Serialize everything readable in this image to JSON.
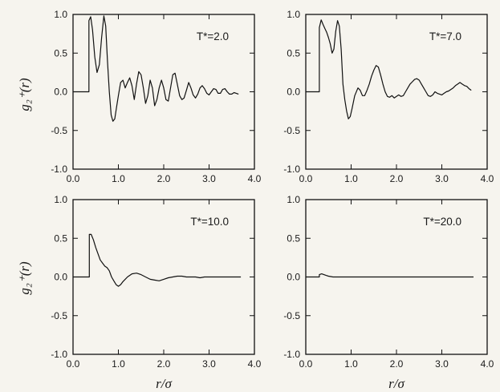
{
  "figure": {
    "xlabel": "r/σ",
    "ylabel": "g₂⁺(r)"
  },
  "chart_data": [
    {
      "type": "line",
      "annotation": "T*=2.0",
      "xlim": [
        0.0,
        4.0
      ],
      "ylim": [
        -1.0,
        1.0
      ],
      "xticks": [
        "0.0",
        "1.0",
        "2.0",
        "3.0",
        "4.0"
      ],
      "yticks": [
        "1.0",
        "0.5",
        "0.0",
        "-0.5",
        "-1.0"
      ],
      "show_xticklabels": false,
      "series": [
        {
          "x": [
            0.0,
            0.35,
            0.35,
            0.39,
            0.43,
            0.48,
            0.53,
            0.58,
            0.63,
            0.68,
            0.72,
            0.76,
            0.8,
            0.84,
            0.88,
            0.92,
            0.96,
            1.0,
            1.05,
            1.1,
            1.15,
            1.2,
            1.25,
            1.3,
            1.35,
            1.4,
            1.45,
            1.5,
            1.55,
            1.6,
            1.65,
            1.7,
            1.75,
            1.8,
            1.85,
            1.9,
            1.95,
            2.0,
            2.05,
            2.1,
            2.15,
            2.2,
            2.25,
            2.3,
            2.35,
            2.4,
            2.45,
            2.5,
            2.55,
            2.6,
            2.65,
            2.7,
            2.75,
            2.8,
            2.85,
            2.9,
            2.95,
            3.0,
            3.05,
            3.1,
            3.15,
            3.2,
            3.25,
            3.3,
            3.35,
            3.4,
            3.45,
            3.5,
            3.55,
            3.6,
            3.65
          ],
          "y": [
            0.0,
            0.0,
            0.92,
            0.97,
            0.8,
            0.45,
            0.25,
            0.35,
            0.7,
            0.98,
            0.85,
            0.4,
            0.0,
            -0.3,
            -0.38,
            -0.35,
            -0.2,
            -0.05,
            0.12,
            0.15,
            0.05,
            0.12,
            0.18,
            0.08,
            -0.1,
            0.1,
            0.26,
            0.22,
            0.05,
            -0.15,
            -0.05,
            0.15,
            0.05,
            -0.18,
            -0.1,
            0.05,
            0.15,
            0.05,
            -0.1,
            -0.12,
            0.05,
            0.22,
            0.24,
            0.1,
            -0.05,
            -0.1,
            -0.08,
            0.02,
            0.12,
            0.05,
            -0.04,
            -0.08,
            -0.03,
            0.05,
            0.08,
            0.04,
            -0.02,
            -0.04,
            0.0,
            0.04,
            0.03,
            -0.02,
            -0.02,
            0.03,
            0.04,
            0.0,
            -0.03,
            -0.03,
            -0.01,
            -0.02,
            -0.03
          ]
        }
      ]
    },
    {
      "type": "line",
      "annotation": "T*=7.0",
      "xlim": [
        0.0,
        4.0
      ],
      "ylim": [
        -1.0,
        1.0
      ],
      "xticks": [
        "0.0",
        "1.0",
        "2.0",
        "3.0",
        "4.0"
      ],
      "yticks": [
        "1.0",
        "0.5",
        "0.0",
        "-0.5",
        "-1.0"
      ],
      "show_xticklabels": false,
      "series": [
        {
          "x": [
            0.0,
            0.3,
            0.3,
            0.34,
            0.38,
            0.42,
            0.46,
            0.5,
            0.54,
            0.58,
            0.62,
            0.66,
            0.7,
            0.74,
            0.78,
            0.82,
            0.86,
            0.9,
            0.94,
            0.98,
            1.02,
            1.08,
            1.15,
            1.2,
            1.25,
            1.3,
            1.35,
            1.4,
            1.45,
            1.5,
            1.55,
            1.6,
            1.65,
            1.7,
            1.75,
            1.8,
            1.85,
            1.9,
            1.95,
            2.0,
            2.05,
            2.1,
            2.15,
            2.2,
            2.25,
            2.3,
            2.35,
            2.4,
            2.45,
            2.5,
            2.55,
            2.6,
            2.65,
            2.7,
            2.75,
            2.8,
            2.85,
            2.9,
            2.95,
            3.0,
            3.05,
            3.1,
            3.15,
            3.2,
            3.25,
            3.3,
            3.35,
            3.4,
            3.45,
            3.5,
            3.55,
            3.6,
            3.65
          ],
          "y": [
            0.0,
            0.0,
            0.83,
            0.93,
            0.87,
            0.82,
            0.77,
            0.7,
            0.62,
            0.5,
            0.55,
            0.78,
            0.92,
            0.85,
            0.55,
            0.1,
            -0.1,
            -0.25,
            -0.35,
            -0.32,
            -0.22,
            -0.05,
            0.05,
            0.02,
            -0.05,
            -0.05,
            0.02,
            0.1,
            0.2,
            0.28,
            0.34,
            0.32,
            0.22,
            0.1,
            0.0,
            -0.06,
            -0.07,
            -0.05,
            -0.08,
            -0.06,
            -0.04,
            -0.06,
            -0.05,
            0.0,
            0.05,
            0.1,
            0.13,
            0.16,
            0.17,
            0.15,
            0.1,
            0.05,
            0.0,
            -0.05,
            -0.06,
            -0.04,
            0.0,
            -0.02,
            -0.03,
            -0.04,
            -0.02,
            0.0,
            0.01,
            0.03,
            0.05,
            0.08,
            0.1,
            0.12,
            0.1,
            0.08,
            0.07,
            0.04,
            0.02
          ]
        }
      ]
    },
    {
      "type": "line",
      "annotation": "T*=10.0",
      "xlim": [
        0.0,
        4.0
      ],
      "ylim": [
        -1.0,
        1.0
      ],
      "xticks": [
        "0.0",
        "1.0",
        "2.0",
        "3.0",
        "4.0"
      ],
      "yticks": [
        "1.0",
        "0.5",
        "0.0",
        "-0.5",
        "-1.0"
      ],
      "show_xticklabels": true,
      "series": [
        {
          "x": [
            0.0,
            0.36,
            0.36,
            0.4,
            0.45,
            0.5,
            0.55,
            0.6,
            0.65,
            0.7,
            0.75,
            0.8,
            0.85,
            0.9,
            0.95,
            1.0,
            1.05,
            1.1,
            1.2,
            1.3,
            1.4,
            1.5,
            1.6,
            1.7,
            1.8,
            1.9,
            2.0,
            2.1,
            2.2,
            2.3,
            2.4,
            2.5,
            2.6,
            2.7,
            2.8,
            2.9,
            3.0,
            3.1,
            3.2,
            3.3,
            3.4,
            3.5,
            3.6,
            3.7
          ],
          "y": [
            0.0,
            0.0,
            0.55,
            0.55,
            0.48,
            0.38,
            0.3,
            0.22,
            0.18,
            0.14,
            0.12,
            0.08,
            0.0,
            -0.05,
            -0.1,
            -0.12,
            -0.1,
            -0.06,
            0.0,
            0.04,
            0.05,
            0.03,
            0.0,
            -0.03,
            -0.04,
            -0.05,
            -0.03,
            -0.01,
            0.0,
            0.01,
            0.01,
            0.0,
            0.0,
            0.0,
            -0.01,
            0.0,
            0.0,
            0.0,
            0.0,
            0.0,
            0.0,
            0.0,
            0.0,
            0.0
          ]
        }
      ]
    },
    {
      "type": "line",
      "annotation": "T*=20.0",
      "xlim": [
        0.0,
        4.0
      ],
      "ylim": [
        -1.0,
        1.0
      ],
      "xticks": [
        "0.0",
        "1.0",
        "2.0",
        "3.0",
        "4.0"
      ],
      "yticks": [
        "1.0",
        "0.5",
        "0.0",
        "-0.5",
        "-1.0"
      ],
      "show_xticklabels": true,
      "series": [
        {
          "x": [
            0.0,
            0.3,
            0.3,
            0.35,
            0.4,
            0.45,
            0.5,
            0.6,
            0.7,
            0.8,
            1.0,
            1.5,
            2.0,
            2.5,
            3.0,
            3.5,
            3.7
          ],
          "y": [
            0.0,
            0.0,
            0.03,
            0.04,
            0.03,
            0.02,
            0.01,
            0.0,
            0.0,
            0.0,
            0.0,
            0.0,
            0.0,
            0.0,
            0.0,
            0.0,
            0.0
          ]
        }
      ]
    }
  ]
}
